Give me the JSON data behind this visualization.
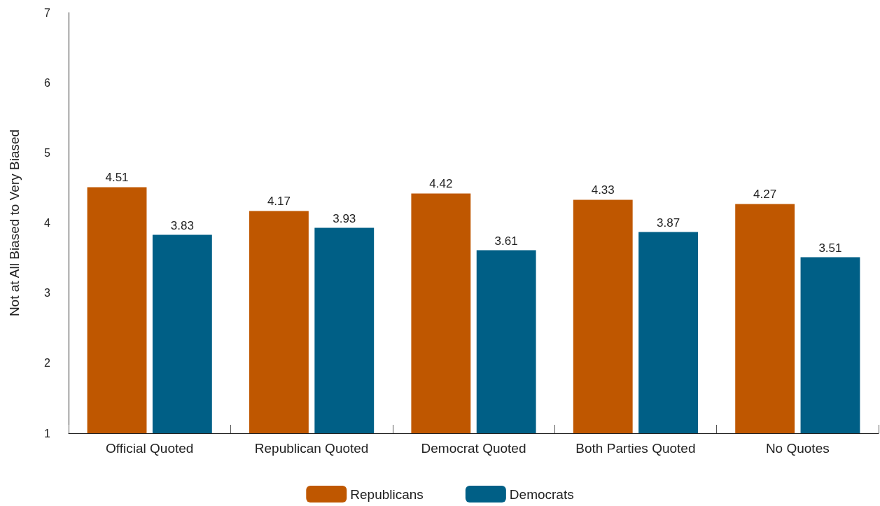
{
  "chart_data": {
    "type": "bar",
    "ylabel": "Not at All Biased to Very Biased",
    "categories": [
      "Official Quoted",
      "Republican Quoted",
      "Democrat Quoted",
      "Both Parties Quoted",
      "No Quotes"
    ],
    "series": [
      {
        "name": "Republicans",
        "color": "#bf5700",
        "values": [
          4.51,
          4.17,
          4.42,
          4.33,
          4.27
        ]
      },
      {
        "name": "Democrats",
        "color": "#005f86",
        "values": [
          3.83,
          3.93,
          3.61,
          3.87,
          3.51
        ]
      }
    ],
    "ylim": [
      1,
      7
    ],
    "yticks": [
      1,
      2,
      3,
      4,
      5,
      6,
      7
    ],
    "grid": false,
    "legend": "bottom",
    "data_labels": true
  }
}
